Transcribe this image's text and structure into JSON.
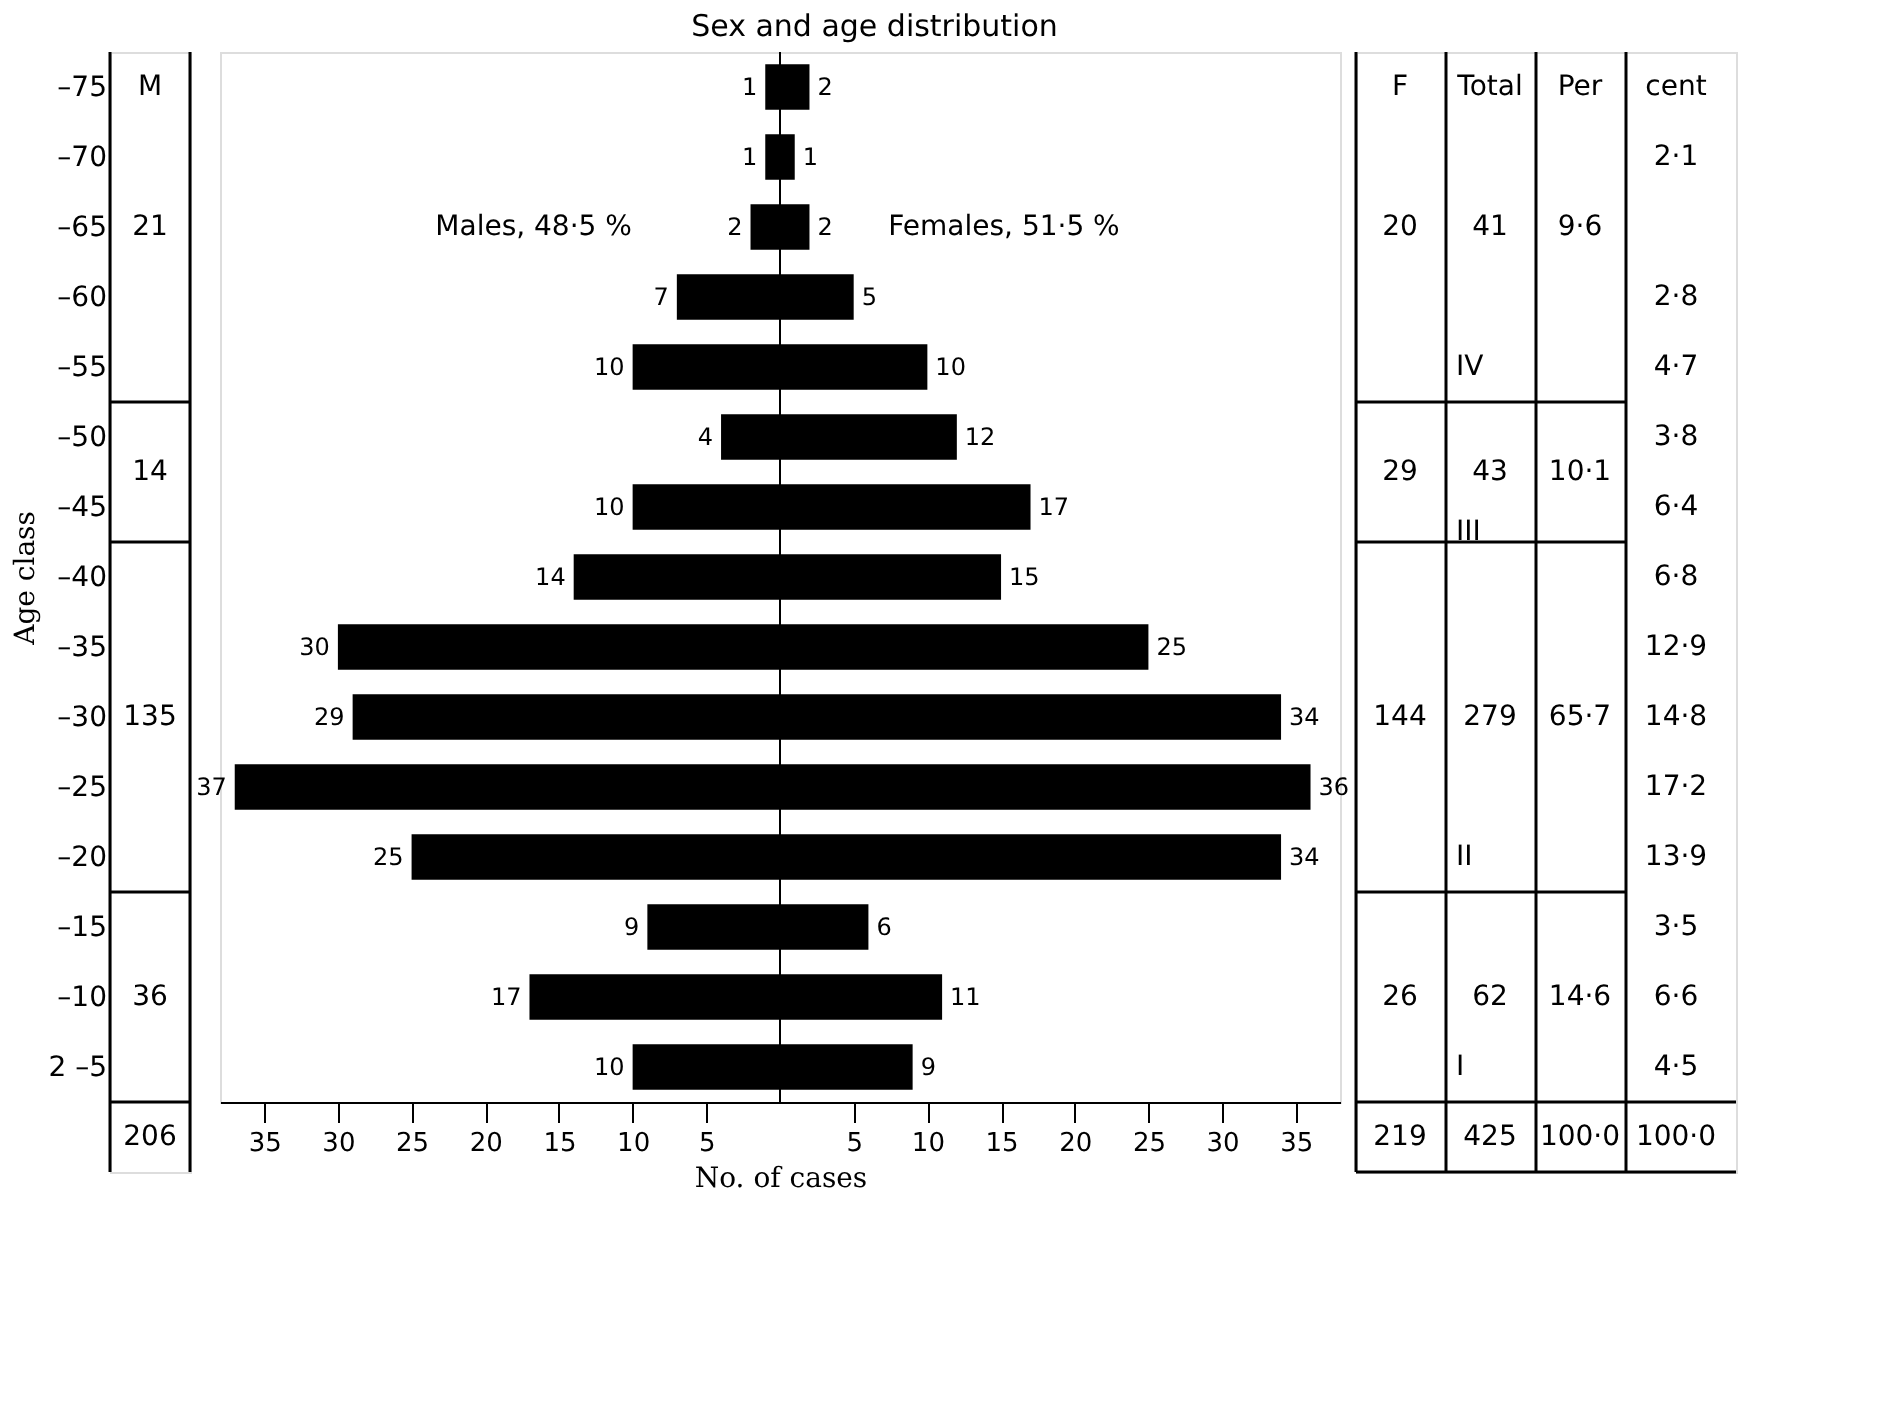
{
  "chart_data": {
    "type": "bar",
    "orientation": "horizontal",
    "title": "Sex and age distribution",
    "xlabel": "No. of cases",
    "ylabel": "Age class",
    "categories": [
      "–75",
      "–70",
      "–65",
      "–60",
      "–55",
      "–50",
      "–45",
      "–40",
      "–35",
      "–30",
      "–25",
      "–20",
      "–15",
      "–10",
      "2 –5"
    ],
    "series": [
      {
        "color": "#000000",
        "values": [
          1,
          1,
          2,
          7,
          10,
          4,
          10,
          14,
          30,
          29,
          37,
          25,
          9,
          17,
          10
        ],
        "base": [
          -1,
          -1,
          -2,
          -7,
          -10,
          -4,
          -10,
          -14,
          -30,
          -29,
          -37,
          -25,
          -9,
          -17,
          -10
        ]
      },
      {
        "color": "#000000",
        "values": [
          2,
          1,
          2,
          5,
          10,
          12,
          17,
          15,
          25,
          34,
          36,
          34,
          6,
          11,
          9
        ]
      }
    ],
    "xlim": [
      -38,
      38
    ],
    "xticks": [
      {
        "value": -35,
        "label": "35"
      },
      {
        "value": -30,
        "label": "30"
      },
      {
        "value": -25,
        "label": "25"
      },
      {
        "value": -20,
        "label": "20"
      },
      {
        "value": -15,
        "label": "15"
      },
      {
        "value": -10,
        "label": "10"
      },
      {
        "value": -5,
        "label": "5"
      },
      5,
      10,
      15,
      20,
      25,
      30,
      35
    ],
    "grid": false,
    "legend": false,
    "data_labels": true,
    "annotations": [
      "Males, 48·5 %",
      "Females, 51·5 %",
      "M",
      "21",
      "14",
      "135",
      "36",
      "206",
      "F",
      "20",
      "29",
      "144",
      "26",
      "219",
      "Total",
      "41",
      "43",
      "279",
      "62",
      "425",
      "Per",
      "9·6",
      "10·1",
      "65·7",
      "14·6",
      "100·0",
      "cent",
      "2·1",
      "2·8",
      "4·7",
      "3·8",
      "6·4",
      "6·8",
      "12·9",
      "14·8",
      "17·2",
      "13·9",
      "3·5",
      "6·6",
      "4·5",
      "100·0",
      "IV",
      "III",
      "II",
      "I"
    ]
  }
}
